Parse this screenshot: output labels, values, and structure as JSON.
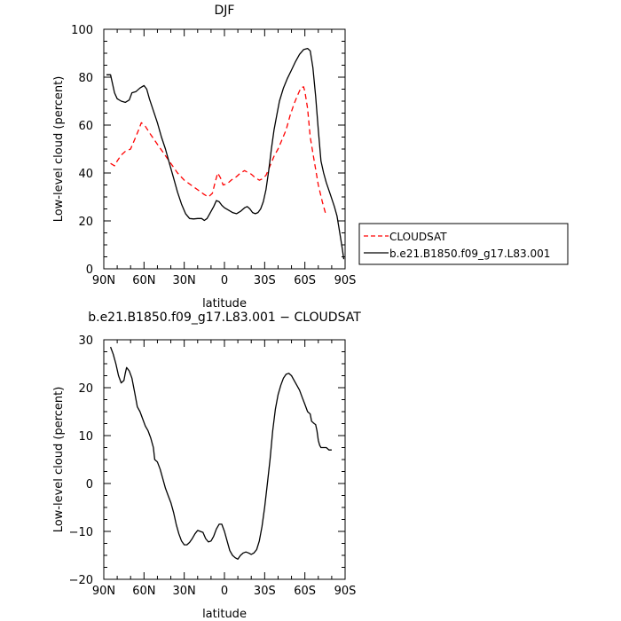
{
  "chart_data": [
    {
      "type": "line",
      "title": "DJF",
      "xlabel": "latitude",
      "ylabel": "Low-level cloud (percent)",
      "xlim": [
        90,
        -90
      ],
      "ylim": [
        0,
        100
      ],
      "xticks": [
        90,
        60,
        30,
        0,
        -30,
        -60,
        -90
      ],
      "xtick_labels": [
        "90N",
        "60N",
        "30N",
        "0",
        "30S",
        "60S",
        "90S"
      ],
      "yticks": [
        0,
        20,
        40,
        60,
        80,
        100
      ],
      "ytick_labels": [
        "0",
        "20",
        "40",
        "60",
        "80",
        "100"
      ],
      "grid": false,
      "legend": "right",
      "series": [
        {
          "name": "CLOUDSAT",
          "color": "#ff0000",
          "dash": "dashed",
          "points": [
            [
              85,
              44
            ],
            [
              82,
              43
            ],
            [
              80,
              45
            ],
            [
              77,
              47.5
            ],
            [
              74,
              49
            ],
            [
              70,
              50
            ],
            [
              67,
              54
            ],
            [
              64,
              58
            ],
            [
              62,
              61
            ],
            [
              59,
              59.5
            ],
            [
              55,
              56
            ],
            [
              50,
              52
            ],
            [
              45,
              48
            ],
            [
              40,
              44
            ],
            [
              35,
              40
            ],
            [
              30,
              37
            ],
            [
              25,
              35
            ],
            [
              20,
              33
            ],
            [
              15,
              31
            ],
            [
              12,
              30
            ],
            [
              9,
              31.5
            ],
            [
              7,
              36
            ],
            [
              5,
              40
            ],
            [
              3,
              38
            ],
            [
              1,
              35
            ],
            [
              -2,
              35.5
            ],
            [
              -5,
              37
            ],
            [
              -9,
              38.5
            ],
            [
              -12,
              40
            ],
            [
              -15,
              41
            ],
            [
              -18,
              40
            ],
            [
              -20,
              39.5
            ],
            [
              -23,
              38
            ],
            [
              -26,
              37
            ],
            [
              -28,
              37.5
            ],
            [
              -31,
              39
            ],
            [
              -34,
              43
            ],
            [
              -37,
              47
            ],
            [
              -40,
              50
            ],
            [
              -43,
              54
            ],
            [
              -46,
              58
            ],
            [
              -49,
              64
            ],
            [
              -52,
              69
            ],
            [
              -55,
              73
            ],
            [
              -57,
              75.5
            ],
            [
              -59,
              76
            ],
            [
              -60,
              74
            ],
            [
              -62,
              67
            ],
            [
              -64,
              55
            ],
            [
              -67,
              45
            ],
            [
              -70,
              35
            ],
            [
              -73,
              28
            ],
            [
              -76,
              22
            ]
          ]
        },
        {
          "name": "b.e21.B1850.f09_g17.L83.001",
          "color": "#000000",
          "dash": "solid",
          "points": [
            [
              88,
              81
            ],
            [
              85,
              81
            ],
            [
              82,
              73.5
            ],
            [
              80,
              71
            ],
            [
              77,
              70
            ],
            [
              74,
              69.5
            ],
            [
              71,
              70.5
            ],
            [
              69,
              73.5
            ],
            [
              66,
              74
            ],
            [
              63,
              75.5
            ],
            [
              60,
              76.5
            ],
            [
              58,
              75
            ],
            [
              56,
              71
            ],
            [
              53,
              66
            ],
            [
              50,
              61
            ],
            [
              47,
              55
            ],
            [
              44,
              50
            ],
            [
              41,
              44
            ],
            [
              38,
              38
            ],
            [
              35,
              32
            ],
            [
              32,
              27
            ],
            [
              29,
              23
            ],
            [
              26,
              21
            ],
            [
              23,
              20.8
            ],
            [
              20,
              21
            ],
            [
              17,
              21
            ],
            [
              15,
              20.2
            ],
            [
              13,
              21
            ],
            [
              11,
              23
            ],
            [
              8,
              26
            ],
            [
              6,
              28.5
            ],
            [
              4,
              28
            ],
            [
              2,
              26.5
            ],
            [
              0,
              25.5
            ],
            [
              -3,
              24.5
            ],
            [
              -6,
              23.5
            ],
            [
              -9,
              23
            ],
            [
              -12,
              24
            ],
            [
              -15,
              25.5
            ],
            [
              -17,
              26
            ],
            [
              -19,
              25
            ],
            [
              -21,
              23.5
            ],
            [
              -23,
              23
            ],
            [
              -25,
              23.5
            ],
            [
              -27,
              25
            ],
            [
              -29,
              28
            ],
            [
              -31,
              33
            ],
            [
              -33,
              41
            ],
            [
              -35,
              50
            ],
            [
              -37,
              58
            ],
            [
              -39,
              64
            ],
            [
              -41,
              70
            ],
            [
              -44,
              75.5
            ],
            [
              -47,
              79.5
            ],
            [
              -50,
              83
            ],
            [
              -53,
              86.5
            ],
            [
              -56,
              89.5
            ],
            [
              -59,
              91.5
            ],
            [
              -62,
              92
            ],
            [
              -64,
              91
            ],
            [
              -66,
              84
            ],
            [
              -68,
              72
            ],
            [
              -70,
              58
            ],
            [
              -72,
              45
            ],
            [
              -74,
              40
            ],
            [
              -76,
              36
            ],
            [
              -79,
              31
            ],
            [
              -82,
              26
            ],
            [
              -84,
              22
            ],
            [
              -86,
              15
            ],
            [
              -88,
              8
            ],
            [
              -89,
              4
            ]
          ]
        }
      ]
    },
    {
      "type": "line",
      "title": "b.e21.B1850.f09_g17.L83.001 − CLOUDSAT",
      "xlabel": "latitude",
      "ylabel": "Low-level cloud (percent)",
      "xlim": [
        90,
        -90
      ],
      "ylim": [
        -20,
        30
      ],
      "xticks": [
        90,
        60,
        30,
        0,
        -30,
        -60,
        -90
      ],
      "xtick_labels": [
        "90N",
        "60N",
        "30N",
        "0",
        "30S",
        "60S",
        "90S"
      ],
      "yticks": [
        -20,
        -10,
        0,
        10,
        20,
        30
      ],
      "ytick_labels": [
        "−20",
        "−10",
        "0",
        "10",
        "20",
        "30"
      ],
      "grid": false,
      "series": [
        {
          "color": "#000000",
          "dash": "solid",
          "points": [
            [
              85,
              28.5
            ],
            [
              83,
              27
            ],
            [
              81,
              25
            ],
            [
              79,
              22.5
            ],
            [
              77,
              21
            ],
            [
              75,
              21.5
            ],
            [
              74,
              23
            ],
            [
              73,
              24.2
            ],
            [
              71,
              23.5
            ],
            [
              69,
              22
            ],
            [
              67,
              19
            ],
            [
              65,
              16
            ],
            [
              63,
              15
            ],
            [
              61,
              13.5
            ],
            [
              59,
              12
            ],
            [
              57,
              11
            ],
            [
              55,
              9.5
            ],
            [
              53,
              7.5
            ],
            [
              52,
              5
            ],
            [
              50,
              4.5
            ],
            [
              48,
              3
            ],
            [
              46,
              1
            ],
            [
              44,
              -1
            ],
            [
              42,
              -2.5
            ],
            [
              40,
              -4
            ],
            [
              38,
              -6
            ],
            [
              36,
              -8.5
            ],
            [
              34,
              -10.5
            ],
            [
              32,
              -12
            ],
            [
              30,
              -12.8
            ],
            [
              28,
              -12.8
            ],
            [
              26,
              -12.3
            ],
            [
              24,
              -11.5
            ],
            [
              22,
              -10.5
            ],
            [
              20,
              -9.8
            ],
            [
              18,
              -10
            ],
            [
              16,
              -10.2
            ],
            [
              14,
              -11.5
            ],
            [
              12,
              -12.2
            ],
            [
              10,
              -12
            ],
            [
              8,
              -11
            ],
            [
              6,
              -9.5
            ],
            [
              4,
              -8.5
            ],
            [
              2,
              -8.5
            ],
            [
              0,
              -10
            ],
            [
              -2,
              -12
            ],
            [
              -4,
              -14
            ],
            [
              -6,
              -15
            ],
            [
              -8,
              -15.5
            ],
            [
              -10,
              -15.8
            ],
            [
              -12,
              -15
            ],
            [
              -14,
              -14.5
            ],
            [
              -16,
              -14.3
            ],
            [
              -18,
              -14.5
            ],
            [
              -20,
              -14.8
            ],
            [
              -22,
              -14.5
            ],
            [
              -24,
              -13.8
            ],
            [
              -26,
              -12
            ],
            [
              -28,
              -9
            ],
            [
              -30,
              -5
            ],
            [
              -32,
              0
            ],
            [
              -34,
              5
            ],
            [
              -36,
              11
            ],
            [
              -38,
              15.5
            ],
            [
              -40,
              18.5
            ],
            [
              -42,
              20.5
            ],
            [
              -44,
              22
            ],
            [
              -46,
              22.8
            ],
            [
              -48,
              23
            ],
            [
              -50,
              22.5
            ],
            [
              -52,
              21.5
            ],
            [
              -54,
              20.5
            ],
            [
              -56,
              19.5
            ],
            [
              -58,
              18
            ],
            [
              -60,
              16.5
            ],
            [
              -62,
              15
            ],
            [
              -64,
              14.5
            ],
            [
              -65,
              13
            ],
            [
              -67,
              12.5
            ],
            [
              -68,
              12.3
            ],
            [
              -69,
              11
            ],
            [
              -70,
              9
            ],
            [
              -71,
              8
            ],
            [
              -72,
              7.5
            ],
            [
              -74,
              7.5
            ],
            [
              -76,
              7.5
            ],
            [
              -78,
              7
            ],
            [
              -80,
              7
            ]
          ]
        }
      ]
    }
  ]
}
